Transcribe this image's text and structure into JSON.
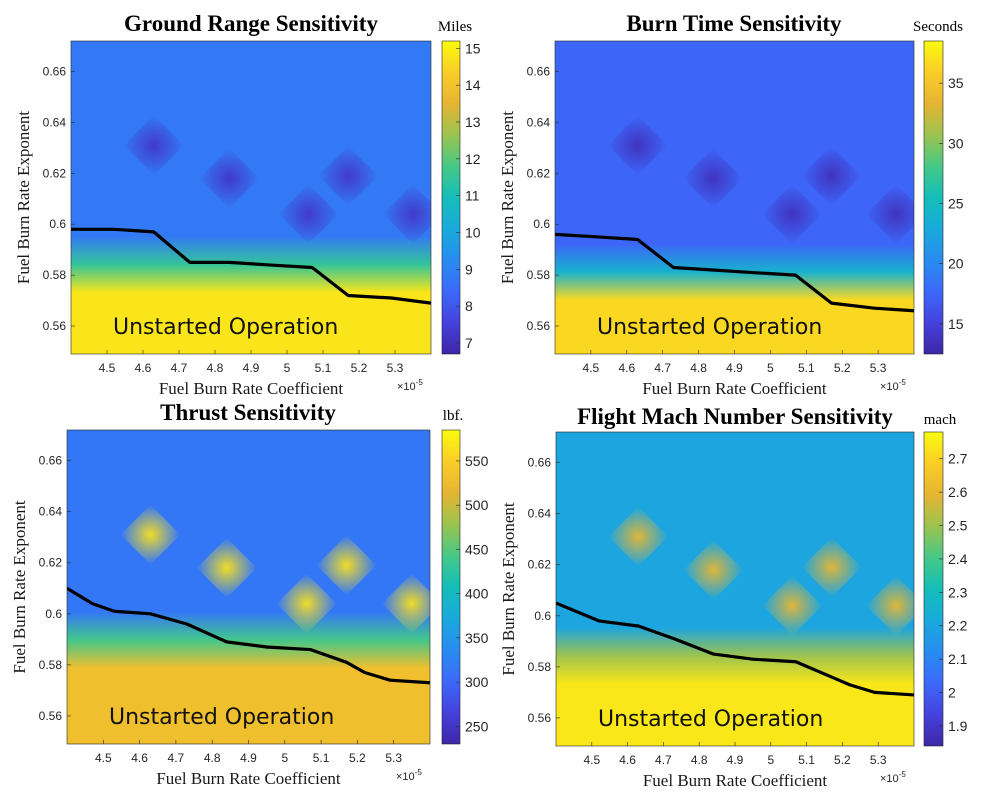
{
  "chart_data": [
    {
      "type": "heatmap",
      "title": "Ground Range Sensitivity",
      "xlabel": "Fuel Burn Rate Coefficient",
      "ylabel": "Fuel Burn Rate Exponent",
      "x_exponent": "×10",
      "x_exponent_power": "-5",
      "xlim": [
        4.4,
        5.4
      ],
      "ylim": [
        0.549,
        0.672
      ],
      "xticks": [
        "4.5",
        "4.6",
        "4.7",
        "4.8",
        "4.9",
        "5",
        "5.1",
        "5.2",
        "5.3"
      ],
      "yticks": [
        "0.56",
        "0.58",
        "0.6",
        "0.62",
        "0.64",
        "0.66"
      ],
      "colorbar_label": "Miles",
      "colorbar_range": [
        6.7,
        15.2
      ],
      "colorbar_ticks": [
        "7",
        "8",
        "9",
        "10",
        "11",
        "12",
        "13",
        "14",
        "15"
      ],
      "low_value": 8.8,
      "boundary_value": 11.5,
      "high_value": 14.8,
      "dip_value": 7.2,
      "dips": [
        [
          4.63,
          0.631
        ],
        [
          4.84,
          0.618
        ],
        [
          5.17,
          0.619
        ],
        [
          5.06,
          0.604
        ],
        [
          5.35,
          0.604
        ]
      ],
      "boundary_line": [
        [
          4.4,
          0.598
        ],
        [
          4.52,
          0.598
        ],
        [
          4.63,
          0.597
        ],
        [
          4.73,
          0.585
        ],
        [
          4.84,
          0.585
        ],
        [
          4.95,
          0.584
        ],
        [
          5.07,
          0.583
        ],
        [
          5.17,
          0.572
        ],
        [
          5.29,
          0.571
        ],
        [
          5.4,
          0.569
        ]
      ],
      "annotation": "Unstarted Operation"
    },
    {
      "type": "heatmap",
      "title": "Burn Time Sensitivity",
      "xlabel": "Fuel Burn Rate Coefficient",
      "ylabel": "Fuel Burn Rate Exponent",
      "x_exponent": "×10",
      "x_exponent_power": "-5",
      "xlim": [
        4.4,
        5.4
      ],
      "ylim": [
        0.549,
        0.672
      ],
      "xticks": [
        "4.5",
        "4.6",
        "4.7",
        "4.8",
        "4.9",
        "5",
        "5.1",
        "5.2",
        "5.3"
      ],
      "yticks": [
        "0.56",
        "0.58",
        "0.6",
        "0.62",
        "0.64",
        "0.66"
      ],
      "colorbar_label": "Seconds",
      "colorbar_range": [
        12.5,
        38.5
      ],
      "colorbar_ticks": [
        "15",
        "20",
        "25",
        "30",
        "35"
      ],
      "low_value": 17.5,
      "boundary_value": 24,
      "high_value": 36.5,
      "dip_value": 13.5,
      "dips": [
        [
          4.63,
          0.631
        ],
        [
          4.84,
          0.618
        ],
        [
          5.17,
          0.619
        ],
        [
          5.06,
          0.604
        ],
        [
          5.35,
          0.604
        ]
      ],
      "boundary_line": [
        [
          4.4,
          0.596
        ],
        [
          4.52,
          0.595
        ],
        [
          4.63,
          0.594
        ],
        [
          4.73,
          0.583
        ],
        [
          4.84,
          0.582
        ],
        [
          4.95,
          0.581
        ],
        [
          5.07,
          0.58
        ],
        [
          5.17,
          0.569
        ],
        [
          5.29,
          0.567
        ],
        [
          5.4,
          0.566
        ]
      ],
      "annotation": "Unstarted Operation"
    },
    {
      "type": "heatmap",
      "title": "Thrust Sensitivity",
      "xlabel": "Fuel Burn Rate Coefficient",
      "ylabel": "Fuel Burn Rate Exponent",
      "x_exponent": "×10",
      "x_exponent_power": "-5",
      "xlim": [
        4.4,
        5.4
      ],
      "ylim": [
        0.549,
        0.672
      ],
      "xticks": [
        "4.5",
        "4.6",
        "4.7",
        "4.8",
        "4.9",
        "5",
        "5.1",
        "5.2",
        "5.3"
      ],
      "yticks": [
        "0.56",
        "0.58",
        "0.6",
        "0.62",
        "0.64",
        "0.66"
      ],
      "colorbar_label": "lbf.",
      "colorbar_range": [
        230,
        585
      ],
      "colorbar_ticks": [
        "250",
        "300",
        "350",
        "400",
        "450",
        "500",
        "550"
      ],
      "low_value": 315,
      "boundary_value": 440,
      "high_value": 530,
      "dip_value": 565,
      "dips": [
        [
          4.63,
          0.631
        ],
        [
          4.84,
          0.618
        ],
        [
          5.17,
          0.619
        ],
        [
          5.06,
          0.604
        ],
        [
          5.35,
          0.604
        ]
      ],
      "boundary_line": [
        [
          4.4,
          0.61
        ],
        [
          4.47,
          0.604
        ],
        [
          4.53,
          0.601
        ],
        [
          4.63,
          0.6
        ],
        [
          4.73,
          0.596
        ],
        [
          4.84,
          0.589
        ],
        [
          4.95,
          0.587
        ],
        [
          5.07,
          0.586
        ],
        [
          5.17,
          0.581
        ],
        [
          5.22,
          0.577
        ],
        [
          5.29,
          0.574
        ],
        [
          5.4,
          0.573
        ]
      ],
      "annotation": "Unstarted Operation"
    },
    {
      "type": "heatmap",
      "title": "Flight Mach Number Sensitivity",
      "xlabel": "Fuel Burn Rate Coefficient",
      "ylabel": "Fuel Burn Rate Exponent",
      "x_exponent": "×10",
      "x_exponent_power": "-5",
      "xlim": [
        4.4,
        5.4
      ],
      "ylim": [
        0.549,
        0.672
      ],
      "xticks": [
        "4.5",
        "4.6",
        "4.7",
        "4.8",
        "4.9",
        "5",
        "5.1",
        "5.2",
        "5.3"
      ],
      "yticks": [
        "0.56",
        "0.58",
        "0.6",
        "0.62",
        "0.64",
        "0.66"
      ],
      "colorbar_label": "mach",
      "colorbar_range": [
        1.84,
        2.78
      ],
      "colorbar_ticks": [
        "1.9",
        "2",
        "2.1",
        "2.2",
        "2.3",
        "2.4",
        "2.5",
        "2.6",
        "2.7"
      ],
      "low_value": 2.2,
      "boundary_value": 2.5,
      "high_value": 2.74,
      "dip_value": 2.6,
      "dips": [
        [
          4.63,
          0.631
        ],
        [
          4.84,
          0.618
        ],
        [
          5.17,
          0.619
        ],
        [
          5.06,
          0.604
        ],
        [
          5.35,
          0.604
        ]
      ],
      "boundary_line": [
        [
          4.4,
          0.605
        ],
        [
          4.52,
          0.598
        ],
        [
          4.63,
          0.596
        ],
        [
          4.73,
          0.591
        ],
        [
          4.84,
          0.585
        ],
        [
          4.95,
          0.583
        ],
        [
          5.07,
          0.582
        ],
        [
          5.17,
          0.576
        ],
        [
          5.22,
          0.573
        ],
        [
          5.29,
          0.57
        ],
        [
          5.4,
          0.569
        ]
      ],
      "annotation": "Unstarted Operation"
    }
  ]
}
